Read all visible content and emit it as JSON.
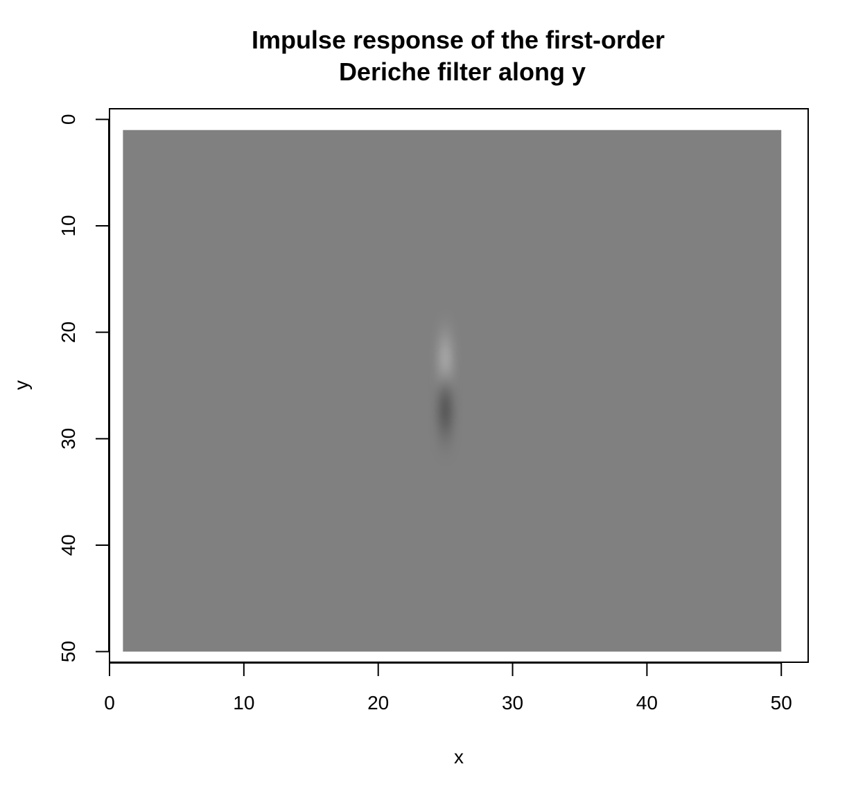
{
  "chart_data": {
    "type": "heatmap",
    "title_lines": [
      "Impulse response of the first-order",
      "Deriche filter along y"
    ],
    "xlabel": "x",
    "ylabel": "y",
    "xlim": [
      0,
      52
    ],
    "ylim": [
      51,
      -1
    ],
    "x_ticks": [
      0,
      10,
      20,
      30,
      40,
      50
    ],
    "y_ticks": [
      0,
      10,
      20,
      30,
      40,
      50
    ],
    "grid": false,
    "colormap": "grayscale",
    "background_value_color": "#808080",
    "image_extent": {
      "x": [
        1,
        50
      ],
      "y": [
        1,
        50
      ]
    },
    "impulse": {
      "x": 25,
      "y": 25
    },
    "response": {
      "positive_lobe_center": {
        "x": 25,
        "y": 23.8
      },
      "negative_lobe_center": {
        "x": 25,
        "y": 26.2
      },
      "positive_color": "#ffffff",
      "negative_color": "#000000",
      "x_spread": 0.45,
      "y_spread": 3.0
    }
  }
}
